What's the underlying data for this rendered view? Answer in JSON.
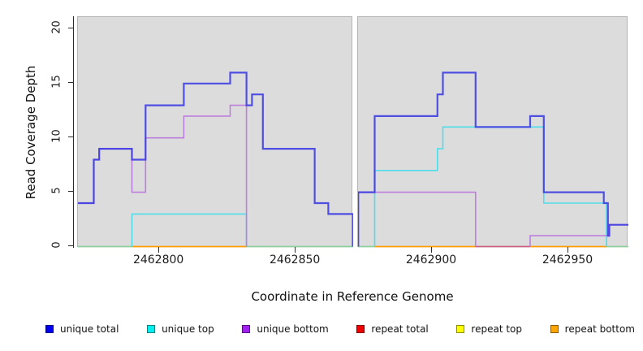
{
  "chart_data": {
    "type": "line",
    "subtype": "step-coverage",
    "title": "",
    "xlabel": "Coordinate in Reference Genome",
    "ylabel": "Read Coverage Depth",
    "ylim": [
      0,
      21
    ],
    "yticks": [
      0,
      5,
      10,
      15,
      20
    ],
    "xticks": [
      2462800,
      2462850,
      2462900,
      2462950
    ],
    "grid": "off",
    "legend_position": "bottom",
    "panel_gap_note": "white vertical gap between two coverage panels around x=2462872",
    "repeat_series": [
      {
        "name": "repeat total",
        "color": "#ee0000",
        "value": 0,
        "note": "zero across both panels",
        "draw": false
      },
      {
        "name": "repeat top",
        "color": "#ffff00",
        "value": 0,
        "note": "zero across both panels",
        "draw": false
      },
      {
        "name": "repeat bottom",
        "color": "#ffa500",
        "value": 0,
        "note": "zero across both panels",
        "draw": false
      }
    ],
    "panels": [
      {
        "name": "left",
        "xdomain": [
          2462770.2,
          2462871.1
        ],
        "baseline_segments": [
          {
            "x1": 2462770.2,
            "x2": 2462790,
            "color": "#8ecf9b"
          },
          {
            "x1": 2462790,
            "x2": 2462832,
            "color": "#ff9c00"
          },
          {
            "x1": 2462832,
            "x2": 2462871.1,
            "color": "#8ecf9b"
          }
        ],
        "series": [
          {
            "name": "unique top",
            "color": "#4fdde9",
            "width": 1.6,
            "opacity": 1,
            "from_zero": true,
            "extend": false,
            "steps": [
              [
                2462790,
                3
              ],
              [
                2462832,
                0
              ]
            ]
          },
          {
            "name": "unique bottom",
            "color": "#bd7fdc",
            "width": 1.6,
            "opacity": 1,
            "from_zero": false,
            "extend": false,
            "steps": [
              [
                2462770.2,
                4
              ],
              [
                2462776,
                8
              ],
              [
                2462778,
                9
              ],
              [
                2462790,
                5
              ],
              [
                2462795,
                10
              ],
              [
                2462809,
                12
              ],
              [
                2462826,
                13
              ],
              [
                2462832,
                0
              ]
            ]
          },
          {
            "name": "unique total",
            "color": "#3b3ae2",
            "width": 2.2,
            "opacity": 0.88,
            "from_zero": false,
            "extend": false,
            "steps": [
              [
                2462770.2,
                4
              ],
              [
                2462776,
                8
              ],
              [
                2462778,
                9
              ],
              [
                2462790,
                8
              ],
              [
                2462795,
                13
              ],
              [
                2462809,
                15
              ],
              [
                2462826,
                16
              ],
              [
                2462832,
                13
              ],
              [
                2462834,
                14
              ],
              [
                2462838,
                9
              ],
              [
                2462857,
                4
              ],
              [
                2462862,
                3
              ],
              [
                2462871,
                0
              ]
            ]
          }
        ]
      },
      {
        "name": "right",
        "xdomain": [
          2462872.9,
          2462972
        ],
        "baseline_segments": [
          {
            "x1": 2462872.9,
            "x2": 2462879,
            "color": "#8ecf9b"
          },
          {
            "x1": 2462879,
            "x2": 2462916,
            "color": "#ff9c00"
          },
          {
            "x1": 2462916,
            "x2": 2462936,
            "color": "#c9607f"
          },
          {
            "x1": 2462936,
            "x2": 2462964,
            "color": "#ff9c00"
          },
          {
            "x1": 2462964,
            "x2": 2462972,
            "color": "#8ecf9b"
          }
        ],
        "series": [
          {
            "name": "unique top",
            "color": "#4fdde9",
            "width": 1.6,
            "opacity": 1,
            "from_zero": true,
            "extend": false,
            "steps": [
              [
                2462879,
                7
              ],
              [
                2462902,
                9
              ],
              [
                2462904,
                11
              ],
              [
                2462941,
                4
              ],
              [
                2462964,
                0
              ]
            ]
          },
          {
            "name": "unique bottom",
            "color": "#bd7fdc",
            "width": 1.6,
            "opacity": 1,
            "from_zero": true,
            "extend": false,
            "steps": [
              [
                2462873,
                5
              ],
              [
                2462916,
                0
              ]
            ]
          },
          {
            "name": "unique bottom",
            "color": "#bd7fdc",
            "width": 1.6,
            "opacity": 1,
            "from_zero": true,
            "extend": true,
            "steps": [
              [
                2462936,
                1
              ],
              [
                2462965,
                2
              ]
            ]
          },
          {
            "name": "unique total",
            "color": "#3b3ae2",
            "width": 2.2,
            "opacity": 0.88,
            "from_zero": true,
            "extend": true,
            "steps": [
              [
                2462873,
                5
              ],
              [
                2462879,
                12
              ],
              [
                2462902,
                14
              ],
              [
                2462904,
                16
              ],
              [
                2462916,
                11
              ],
              [
                2462936,
                12
              ],
              [
                2462941,
                5
              ],
              [
                2462963,
                4
              ],
              [
                2462964.5,
                1
              ],
              [
                2462965,
                2
              ]
            ]
          }
        ]
      }
    ],
    "legend": [
      {
        "label": "unique total",
        "color": "#0000ee"
      },
      {
        "label": "unique top",
        "color": "#00eeee"
      },
      {
        "label": "unique bottom",
        "color": "#a020f0"
      },
      {
        "label": "repeat total",
        "color": "#ee0000"
      },
      {
        "label": "repeat top",
        "color": "#ffff00"
      },
      {
        "label": "repeat bottom",
        "color": "#ffa500"
      }
    ]
  }
}
